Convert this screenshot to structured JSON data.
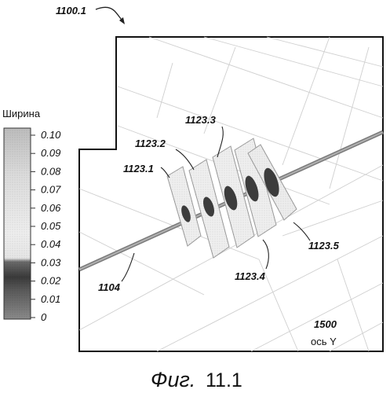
{
  "figure_ref": "1100.1",
  "scale": {
    "title": "Ширина",
    "ticks": [
      "0.10",
      "0.09",
      "0.08",
      "0.07",
      "0.06",
      "0.05",
      "0.04",
      "0.03",
      "0.02",
      "0.01",
      "0"
    ]
  },
  "labels": {
    "well": "1104",
    "fracture_1": "1123.1",
    "fracture_2": "1123.2",
    "fracture_3": "1123.3",
    "fracture_4": "1123.4",
    "fracture_5": "1123.5"
  },
  "axis": {
    "value": "1500",
    "name": "ось Y"
  },
  "caption": {
    "word": "Фиг.",
    "number": "11.1"
  }
}
